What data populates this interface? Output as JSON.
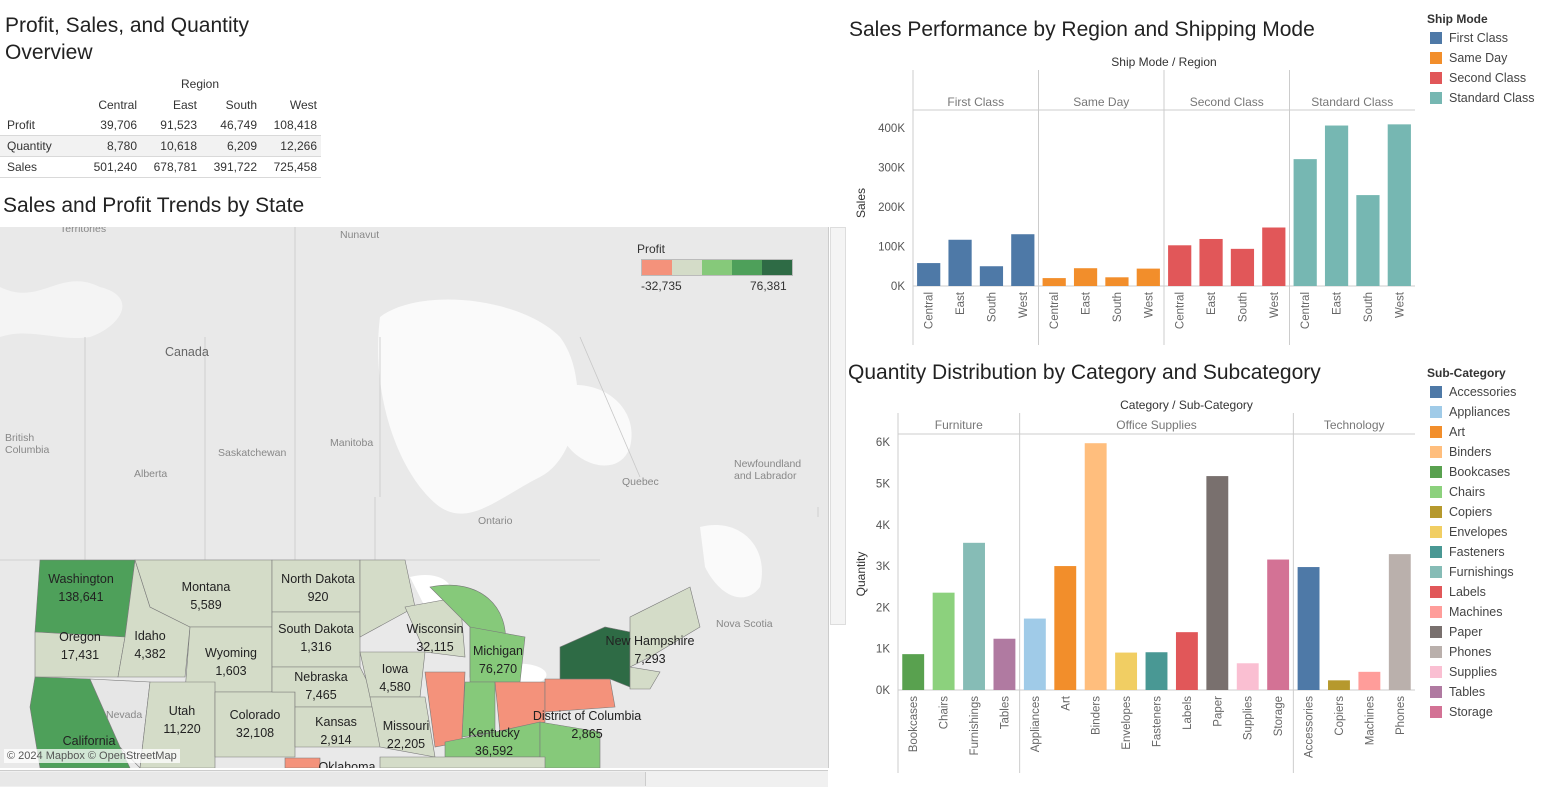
{
  "overview": {
    "title": "Profit, Sales, and Quantity Overview",
    "column_group": "Region",
    "columns": [
      "Central",
      "East",
      "South",
      "West"
    ],
    "rows": [
      {
        "label": "Profit",
        "values": [
          "39,706",
          "91,523",
          "46,749",
          "108,418"
        ]
      },
      {
        "label": "Quantity",
        "values": [
          "8,780",
          "10,618",
          "6,209",
          "12,266"
        ]
      },
      {
        "label": "Sales",
        "values": [
          "501,240",
          "678,781",
          "391,722",
          "725,458"
        ]
      }
    ]
  },
  "map": {
    "title": "Sales and Profit Trends by State",
    "legend_title": "Profit",
    "legend_min": "-32,735",
    "legend_max": "76,381",
    "legend_colors": [
      "#f4927b",
      "#d4dcc8",
      "#86c97a",
      "#4ea05a",
      "#2e6b45"
    ],
    "attribution": "© 2024 Mapbox © OpenStreetMap",
    "place_labels": [
      "Territories",
      "Nunavut",
      "Canada",
      "British Columbia",
      "Alberta",
      "Manitoba",
      "Saskatchewan",
      "Ontario",
      "Quebec",
      "Newfoundland and Labrador",
      "Nova Scotia",
      "Nevada"
    ],
    "states": [
      {
        "name": "Washington",
        "value": "138,641"
      },
      {
        "name": "Montana",
        "value": "5,589"
      },
      {
        "name": "North Dakota",
        "value": "920"
      },
      {
        "name": "Oregon",
        "value": "17,431"
      },
      {
        "name": "Idaho",
        "value": "4,382"
      },
      {
        "name": "Wyoming",
        "value": "1,603"
      },
      {
        "name": "South Dakota",
        "value": "1,316"
      },
      {
        "name": "Wisconsin",
        "value": "32,115"
      },
      {
        "name": "Michigan",
        "value": "76,270"
      },
      {
        "name": "New Hampshire",
        "value": "7,293"
      },
      {
        "name": "Iowa",
        "value": "4,580"
      },
      {
        "name": "Nebraska",
        "value": "7,465"
      },
      {
        "name": "Utah",
        "value": "11,220"
      },
      {
        "name": "Colorado",
        "value": "32,108"
      },
      {
        "name": "Kansas",
        "value": "2,914"
      },
      {
        "name": "Missouri",
        "value": "22,205"
      },
      {
        "name": "Kentucky",
        "value": "36,592"
      },
      {
        "name": "District of Columbia",
        "value": "2,865"
      },
      {
        "name": "California",
        "value": ""
      },
      {
        "name": "Oklahoma",
        "value": ""
      }
    ]
  },
  "chart_data": [
    {
      "type": "bar",
      "title": "Sales Performance by Region and Shipping Mode",
      "header": "Ship Mode  /  Region",
      "ylabel": "Sales",
      "ylim": [
        0,
        420000
      ],
      "yticks": [
        "0K",
        "100K",
        "200K",
        "300K",
        "400K"
      ],
      "groups": [
        "First Class",
        "Same Day",
        "Second Class",
        "Standard Class"
      ],
      "categories": [
        "Central",
        "East",
        "South",
        "West"
      ],
      "series": [
        {
          "name": "First Class",
          "color": "#4e79a7",
          "values": [
            58000,
            117000,
            50000,
            131000
          ]
        },
        {
          "name": "Same Day",
          "color": "#f28e2b",
          "values": [
            20000,
            45000,
            22000,
            44000
          ]
        },
        {
          "name": "Second Class",
          "color": "#e15759",
          "values": [
            103000,
            119000,
            94000,
            148000
          ]
        },
        {
          "name": "Standard Class",
          "color": "#76b7b2",
          "values": [
            321000,
            406000,
            230000,
            409000
          ]
        }
      ],
      "legend": {
        "title": "Ship Mode",
        "items": [
          "First Class",
          "Same Day",
          "Second Class",
          "Standard Class"
        ]
      }
    },
    {
      "type": "bar",
      "title": "Quantity Distribution by Category and Subcategory",
      "header": "Category  /  Sub-Category",
      "ylabel": "Quantity",
      "ylim": [
        0,
        6100
      ],
      "yticks": [
        "0K",
        "1K",
        "2K",
        "3K",
        "4K",
        "5K",
        "6K"
      ],
      "groups": [
        {
          "name": "Furniture",
          "items": [
            {
              "label": "Bookcases",
              "value": 868,
              "color": "#59a14f"
            },
            {
              "label": "Chairs",
              "value": 2356,
              "color": "#8cd17d"
            },
            {
              "label": "Furnishings",
              "value": 3563,
              "color": "#86bcb6"
            },
            {
              "label": "Tables",
              "value": 1241,
              "color": "#b07aa1"
            }
          ]
        },
        {
          "name": "Office Supplies",
          "items": [
            {
              "label": "Appliances",
              "value": 1729,
              "color": "#a0cbe8"
            },
            {
              "label": "Art",
              "value": 3000,
              "color": "#f28e2b"
            },
            {
              "label": "Binders",
              "value": 5974,
              "color": "#ffbe7d"
            },
            {
              "label": "Envelopes",
              "value": 906,
              "color": "#f1ce63"
            },
            {
              "label": "Fasteners",
              "value": 914,
              "color": "#499894"
            },
            {
              "label": "Labels",
              "value": 1400,
              "color": "#e15759"
            },
            {
              "label": "Paper",
              "value": 5178,
              "color": "#79706e"
            },
            {
              "label": "Supplies",
              "value": 647,
              "color": "#fabfd2"
            },
            {
              "label": "Storage",
              "value": 3158,
              "color": "#d37295"
            }
          ]
        },
        {
          "name": "Technology",
          "items": [
            {
              "label": "Accessories",
              "value": 2976,
              "color": "#4e79a7"
            },
            {
              "label": "Copiers",
              "value": 234,
              "color": "#b6992d"
            },
            {
              "label": "Machines",
              "value": 440,
              "color": "#ff9d9a"
            },
            {
              "label": "Phones",
              "value": 3289,
              "color": "#bab0ac"
            }
          ]
        }
      ],
      "legend": {
        "title": "Sub-Category",
        "items": [
          {
            "name": "Accessories",
            "color": "#4e79a7"
          },
          {
            "name": "Appliances",
            "color": "#a0cbe8"
          },
          {
            "name": "Art",
            "color": "#f28e2b"
          },
          {
            "name": "Binders",
            "color": "#ffbe7d"
          },
          {
            "name": "Bookcases",
            "color": "#59a14f"
          },
          {
            "name": "Chairs",
            "color": "#8cd17d"
          },
          {
            "name": "Copiers",
            "color": "#b6992d"
          },
          {
            "name": "Envelopes",
            "color": "#f1ce63"
          },
          {
            "name": "Fasteners",
            "color": "#499894"
          },
          {
            "name": "Furnishings",
            "color": "#86bcb6"
          },
          {
            "name": "Labels",
            "color": "#e15759"
          },
          {
            "name": "Machines",
            "color": "#ff9d9a"
          },
          {
            "name": "Paper",
            "color": "#79706e"
          },
          {
            "name": "Phones",
            "color": "#bab0ac"
          },
          {
            "name": "Supplies",
            "color": "#fabfd2"
          },
          {
            "name": "Tables",
            "color": "#b07aa1"
          },
          {
            "name": "Storage",
            "color": "#d37295"
          }
        ]
      }
    }
  ]
}
